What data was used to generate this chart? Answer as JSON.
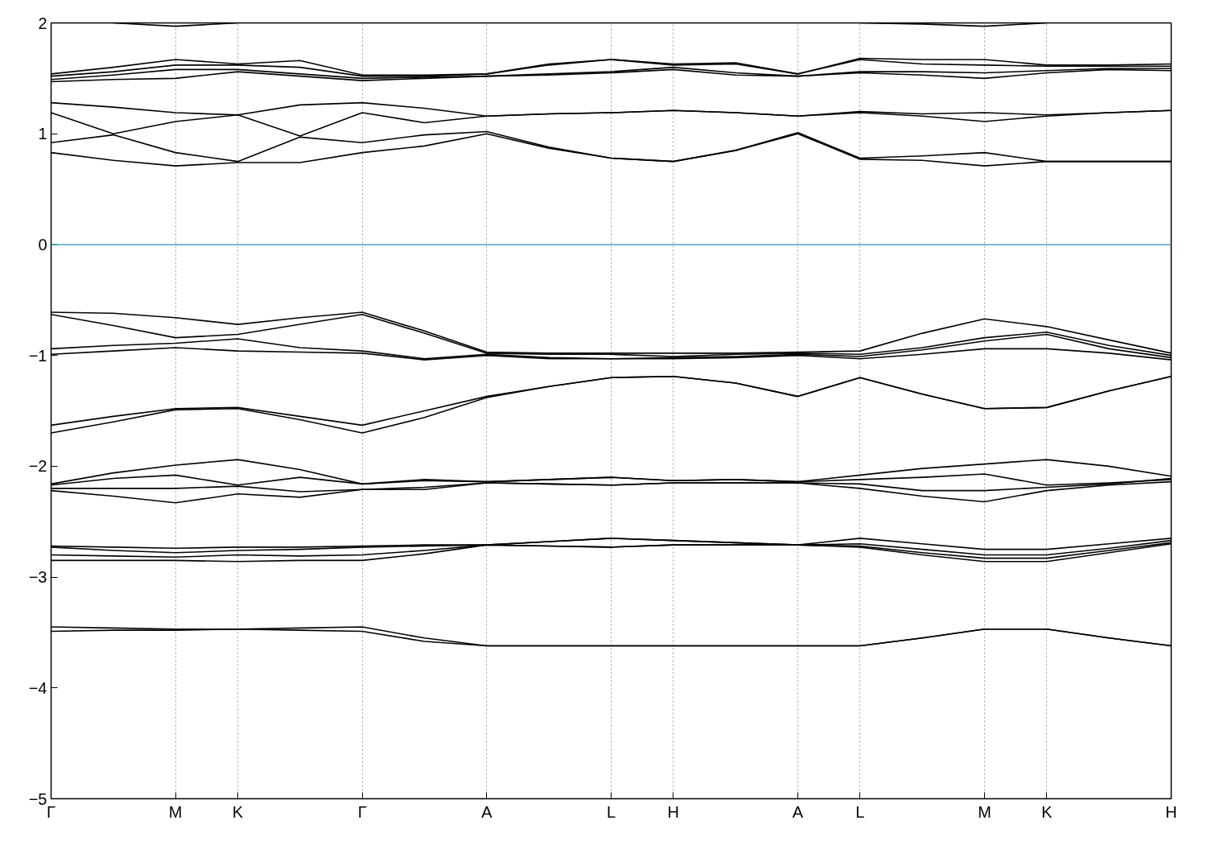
{
  "chart_data": {
    "type": "line",
    "categories": [
      "Γ",
      null,
      "M",
      "K",
      null,
      "Γ",
      null,
      "A",
      null,
      "L",
      "H",
      null,
      "A",
      "L",
      null,
      "M",
      "K",
      null,
      "H"
    ],
    "ylim": [
      -5,
      2
    ],
    "yticks": [
      -5,
      -4,
      -3,
      -2,
      -1,
      0,
      1,
      2
    ],
    "grid": "x",
    "marker": "none",
    "line_style": "solid",
    "ref_lines": [
      {
        "axis": "y",
        "value": 0,
        "color": "#3ea6d8"
      }
    ],
    "series": [
      {
        "color": "#000000",
        "values": [
          null,
          2.0,
          1.97,
          2.0,
          null,
          null,
          null,
          null,
          null,
          null,
          null,
          null,
          null,
          2.0,
          1.99,
          1.97,
          2.0,
          null,
          null
        ]
      },
      {
        "color": "#000000",
        "values": [
          1.47,
          1.49,
          1.5,
          1.56,
          1.52,
          1.48,
          1.5,
          1.52,
          1.53,
          1.55,
          1.58,
          1.53,
          1.52,
          1.55,
          1.53,
          1.5,
          1.55,
          1.58,
          1.57
        ]
      },
      {
        "color": "#000000",
        "values": [
          1.49,
          1.53,
          1.58,
          1.58,
          1.54,
          1.5,
          1.51,
          1.52,
          1.54,
          1.56,
          1.6,
          1.55,
          1.52,
          1.56,
          1.56,
          1.55,
          1.57,
          1.59,
          1.59
        ]
      },
      {
        "color": "#000000",
        "values": [
          1.52,
          1.56,
          1.62,
          1.62,
          1.6,
          1.52,
          1.52,
          1.54,
          1.62,
          1.67,
          1.62,
          1.63,
          1.54,
          1.67,
          1.63,
          1.62,
          1.61,
          1.61,
          1.61
        ]
      },
      {
        "color": "#000000",
        "values": [
          1.54,
          1.6,
          1.67,
          1.63,
          1.66,
          1.53,
          1.53,
          1.54,
          1.63,
          1.67,
          1.63,
          1.64,
          1.54,
          1.68,
          1.67,
          1.67,
          1.62,
          1.62,
          1.63
        ]
      },
      {
        "color": "#000000",
        "values": [
          0.83,
          0.76,
          0.71,
          0.74,
          0.74,
          0.83,
          0.89,
          1.0,
          0.87,
          0.78,
          0.75,
          0.85,
          1.0,
          0.77,
          0.76,
          0.71,
          0.75,
          0.75,
          0.75
        ]
      },
      {
        "color": "#000000",
        "values": [
          0.92,
          0.99,
          0.83,
          0.75,
          0.97,
          0.92,
          0.99,
          1.02,
          0.88,
          0.78,
          0.75,
          0.85,
          1.01,
          0.78,
          0.8,
          0.83,
          0.75,
          0.75,
          0.75
        ]
      },
      {
        "color": "#000000",
        "values": [
          1.19,
          1.0,
          1.11,
          1.17,
          0.98,
          1.19,
          1.1,
          1.16,
          1.18,
          1.19,
          1.21,
          1.19,
          1.16,
          1.19,
          1.16,
          1.11,
          1.16,
          1.19,
          1.21
        ]
      },
      {
        "color": "#000000",
        "values": [
          1.28,
          1.24,
          1.19,
          1.17,
          1.26,
          1.28,
          1.23,
          1.16,
          1.18,
          1.19,
          1.21,
          1.19,
          1.16,
          1.2,
          1.18,
          1.19,
          1.17,
          1.19,
          1.21
        ]
      },
      {
        "color": "#000000",
        "values": [
          -0.61,
          -0.62,
          -0.66,
          -0.72,
          -0.66,
          -0.61,
          -0.78,
          -0.97,
          -0.98,
          -0.98,
          -0.98,
          -0.98,
          -0.97,
          -0.96,
          -0.8,
          -0.67,
          -0.74,
          -0.86,
          -0.98
        ]
      },
      {
        "color": "#000000",
        "values": [
          -0.63,
          -0.73,
          -0.84,
          -0.81,
          -0.72,
          -0.63,
          -0.8,
          -0.98,
          -0.99,
          -0.99,
          -1.01,
          -0.99,
          -0.98,
          -0.99,
          -0.93,
          -0.84,
          -0.79,
          -0.91,
          -1.0
        ]
      },
      {
        "color": "#000000",
        "values": [
          -0.94,
          -0.91,
          -0.89,
          -0.85,
          -0.93,
          -0.96,
          -1.03,
          -0.99,
          -1.02,
          -1.03,
          -1.02,
          -1.01,
          -0.99,
          -1.01,
          -0.95,
          -0.87,
          -0.81,
          -0.94,
          -1.02
        ]
      },
      {
        "color": "#000000",
        "values": [
          -0.99,
          -0.96,
          -0.93,
          -0.96,
          -0.97,
          -0.98,
          -1.04,
          -1.0,
          -1.03,
          -1.03,
          -1.03,
          -1.02,
          -1.0,
          -1.03,
          -0.99,
          -0.94,
          -0.94,
          -0.98,
          -1.04
        ]
      },
      {
        "color": "#000000",
        "values": [
          -1.63,
          -1.55,
          -1.48,
          -1.47,
          -1.55,
          -1.63,
          -1.5,
          -1.37,
          -1.28,
          -1.2,
          -1.19,
          -1.25,
          -1.37,
          -1.2,
          -1.35,
          -1.48,
          -1.47,
          -1.32,
          -1.19
        ]
      },
      {
        "color": "#000000",
        "values": [
          -1.7,
          -1.6,
          -1.49,
          -1.48,
          -1.58,
          -1.7,
          -1.56,
          -1.38,
          -1.28,
          -1.2,
          -1.19,
          -1.25,
          -1.37,
          -1.2,
          -1.35,
          -1.48,
          -1.47,
          -1.32,
          -1.19
        ]
      },
      {
        "color": "#000000",
        "values": [
          -2.16,
          -2.06,
          -1.99,
          -1.94,
          -2.03,
          -2.16,
          -2.12,
          -2.14,
          -2.12,
          -2.1,
          -2.13,
          -2.12,
          -2.14,
          -2.08,
          -2.02,
          -1.98,
          -1.94,
          -2.0,
          -2.09
        ]
      },
      {
        "color": "#000000",
        "values": [
          -2.17,
          -2.11,
          -2.08,
          -2.17,
          -2.1,
          -2.16,
          -2.13,
          -2.14,
          -2.12,
          -2.1,
          -2.13,
          -2.12,
          -2.14,
          -2.12,
          -2.1,
          -2.07,
          -2.17,
          -2.15,
          -2.12
        ]
      },
      {
        "color": "#000000",
        "values": [
          -2.2,
          -2.2,
          -2.2,
          -2.18,
          -2.23,
          -2.21,
          -2.19,
          -2.15,
          -2.16,
          -2.17,
          -2.15,
          -2.15,
          -2.15,
          -2.16,
          -2.22,
          -2.22,
          -2.19,
          -2.16,
          -2.11
        ]
      },
      {
        "color": "#000000",
        "values": [
          -2.22,
          -2.27,
          -2.33,
          -2.25,
          -2.28,
          -2.21,
          -2.21,
          -2.15,
          -2.16,
          -2.17,
          -2.15,
          -2.15,
          -2.15,
          -2.2,
          -2.27,
          -2.32,
          -2.22,
          -2.17,
          -2.14
        ]
      },
      {
        "color": "#000000",
        "values": [
          -2.72,
          -2.73,
          -2.74,
          -2.73,
          -2.73,
          -2.72,
          -2.71,
          -2.71,
          -2.68,
          -2.65,
          -2.67,
          -2.69,
          -2.71,
          -2.65,
          -2.7,
          -2.75,
          -2.75,
          -2.7,
          -2.65
        ]
      },
      {
        "color": "#000000",
        "values": [
          -2.73,
          -2.76,
          -2.78,
          -2.76,
          -2.75,
          -2.73,
          -2.72,
          -2.71,
          -2.68,
          -2.65,
          -2.67,
          -2.69,
          -2.71,
          -2.7,
          -2.75,
          -2.8,
          -2.8,
          -2.74,
          -2.67
        ]
      },
      {
        "color": "#000000",
        "values": [
          -2.8,
          -2.81,
          -2.82,
          -2.8,
          -2.81,
          -2.8,
          -2.76,
          -2.71,
          -2.72,
          -2.73,
          -2.71,
          -2.71,
          -2.71,
          -2.72,
          -2.78,
          -2.83,
          -2.83,
          -2.76,
          -2.69
        ]
      },
      {
        "color": "#000000",
        "values": [
          -2.85,
          -2.85,
          -2.85,
          -2.86,
          -2.85,
          -2.85,
          -2.79,
          -2.71,
          -2.72,
          -2.73,
          -2.71,
          -2.71,
          -2.71,
          -2.73,
          -2.8,
          -2.86,
          -2.86,
          -2.78,
          -2.7
        ]
      },
      {
        "color": "#000000",
        "values": [
          -3.45,
          -3.46,
          -3.47,
          -3.47,
          -3.46,
          -3.45,
          -3.55,
          -3.62,
          -3.62,
          -3.62,
          -3.62,
          -3.62,
          -3.62,
          -3.62,
          -3.55,
          -3.47,
          -3.47,
          -3.55,
          -3.62
        ]
      },
      {
        "color": "#000000",
        "values": [
          -3.49,
          -3.48,
          -3.48,
          -3.47,
          -3.48,
          -3.49,
          -3.58,
          -3.62,
          -3.62,
          -3.62,
          -3.62,
          -3.62,
          -3.62,
          -3.62,
          -3.55,
          -3.47,
          -3.47,
          -3.55,
          -3.62
        ]
      }
    ]
  }
}
